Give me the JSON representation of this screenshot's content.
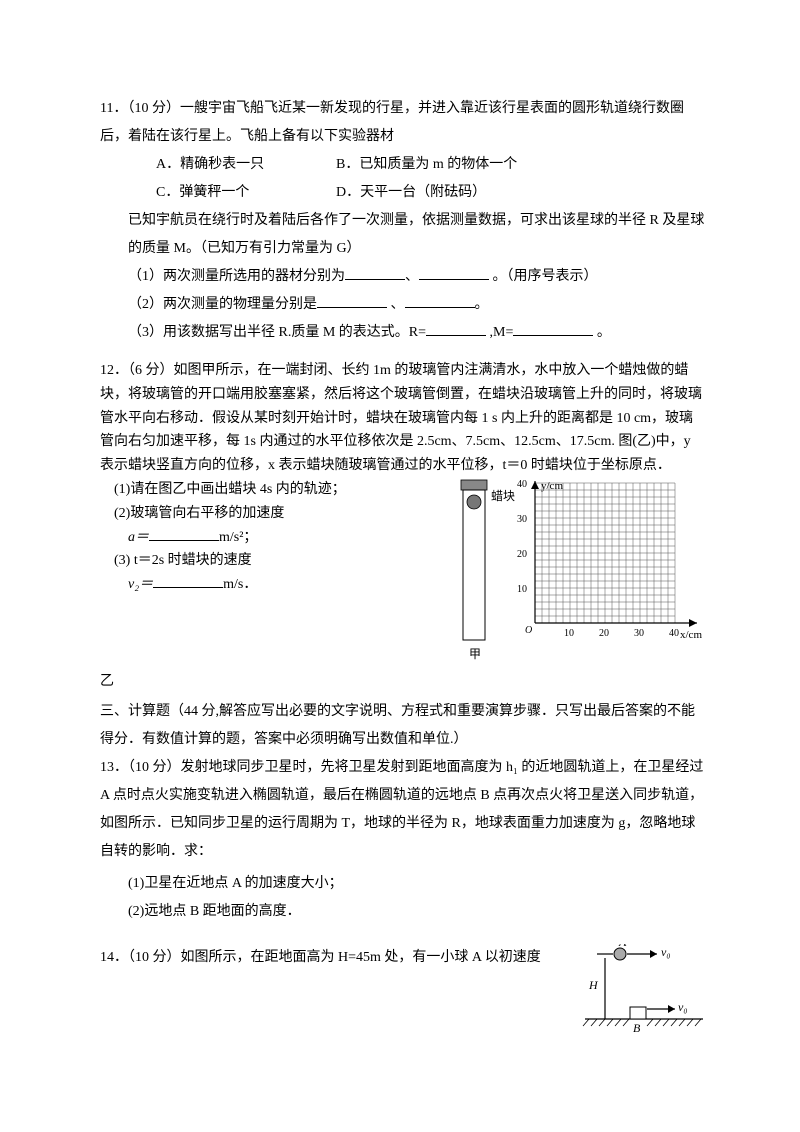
{
  "q11": {
    "lead": "11．（10 分）一艘宇宙飞船飞近某一新发现的行星，并进入靠近该行星表面的圆形轨道绕行数圈后，着陆在该行星上。飞船上备有以下实验器材",
    "optA": "A．精确秒表一只",
    "optB": "B．已知质量为 m 的物体一个",
    "optC": "C．弹簧秤一个",
    "optD": "D．天平一台（附砝码）",
    "para2a": "已知宇航员在绕行时及着陆后各作了一次测量，依据测量数据，可求出该星球的半径 R 及星球的质量 M。（已知万有引力常量为 G）",
    "s1a": "（1）两次测量所选用的器材分别为",
    "s1b": "、",
    "s1c": " 。（用序号表示）",
    "s2a": "（2）两次测量的物理量分别是",
    "s2b": " 、",
    "s2c": "。",
    "s3a": "（3）用该数据写出半径 R.质量 M 的表达式。R=",
    "s3b": " ,M=",
    "s3c": " 。"
  },
  "q12": {
    "lead": "12．（6 分）如图甲所示，在一端封闭、长约 1m 的玻璃管内注满清水，水中放入一个蜡烛做的蜡块，将玻璃管的开口端用胶塞塞紧，然后将这个玻璃管倒置，在蜡块沿玻璃管上升的同时，将玻璃管水平向右移动．假设从某时刻开始计时，蜡块在玻璃管内每 1 s 内上升的距离都是 10 cm，玻璃管向右匀加速平移，每 1s 内通过的水平位移依次是 2.5cm、7.5cm、12.5cm、17.5cm. 图(乙)中，y 表示蜡块竖直方向的位移，x 表示蜡块随玻璃管通过的水平位移，t＝0 时蜡块位于坐标原点．",
    "p1": "(1)请在图乙中画出蜡块 4s 内的轨迹；",
    "p2": "(2)玻璃管向右平移的加速度",
    "p2b": "a＝",
    "p2u": "m/s²；",
    "p3": "(3) t＝2s 时蜡块的速度",
    "p3b": "v₂＝",
    "p3u": "m/s．",
    "capJia": "甲",
    "capYi": "乙",
    "labelLa": "蜡块",
    "chart": {
      "xlabel": "x/cm",
      "ylabel": "y/cm",
      "xlim": [
        0,
        40
      ],
      "ylim": [
        0,
        40
      ],
      "major_ticks": [
        10,
        20,
        30,
        40
      ],
      "origin_label": "O",
      "grid_color": "#555555",
      "axis_color": "#000000",
      "background": "#ffffff"
    }
  },
  "sec3": {
    "title": "三、计算题（44 分,解答应写出必要的文字说明、方程式和重要演算步骤．只写出最后答案的不能得分．有数值计算的题，答案中必须明确写出数值和单位.）"
  },
  "q13": {
    "lead1": "13．（10 分）发射地球同步卫星时，先将卫星发射到距地面高度为 h₁ 的近地圆轨道上，在卫星经过 A 点时点火实施变轨进入椭圆轨道，最后在椭圆轨道的远地点 B 点再次点火将卫星送入同步轨道，如图所示．已知同步卫星的运行周期为 T，地球的半径为 R，地球表面重力加速度为 g，忽略地球自转的影响．求：",
    "s1": "(1)卫星在近地点 A 的加速度大小；",
    "s2": "(2)远地点 B 距地面的高度．"
  },
  "q14": {
    "lead": "14．（10 分）如图所示，在距地面高为 H=45m 处，有一小球 A 以初速度",
    "fig": {
      "labelA": "A",
      "labelB": "B",
      "labelH": "H",
      "labelV0a": "v₀",
      "labelV0b": "v₀"
    }
  }
}
